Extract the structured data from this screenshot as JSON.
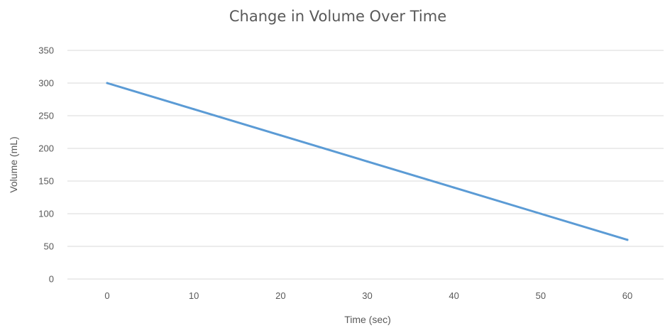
{
  "chart_data": {
    "type": "line",
    "title": "Change in Volume Over Time",
    "xlabel": "Time (sec)",
    "ylabel": "Volume (mL)",
    "x": [
      0,
      10,
      20,
      30,
      40,
      50,
      60
    ],
    "series": [
      {
        "values": [
          300,
          260,
          220,
          180,
          140,
          100,
          60
        ]
      }
    ],
    "xticks": [
      "0",
      "10",
      "20",
      "30",
      "40",
      "50",
      "60"
    ],
    "yticks": [
      "0",
      "50",
      "100",
      "150",
      "200",
      "250",
      "300",
      "350"
    ],
    "xlim": [
      0,
      60
    ],
    "ylim": [
      0,
      350
    ],
    "grid": "horizontal",
    "legend": "none",
    "colors": {
      "line": "#5b9bd5",
      "grid": "#d9d9d9",
      "text": "#595959"
    }
  }
}
